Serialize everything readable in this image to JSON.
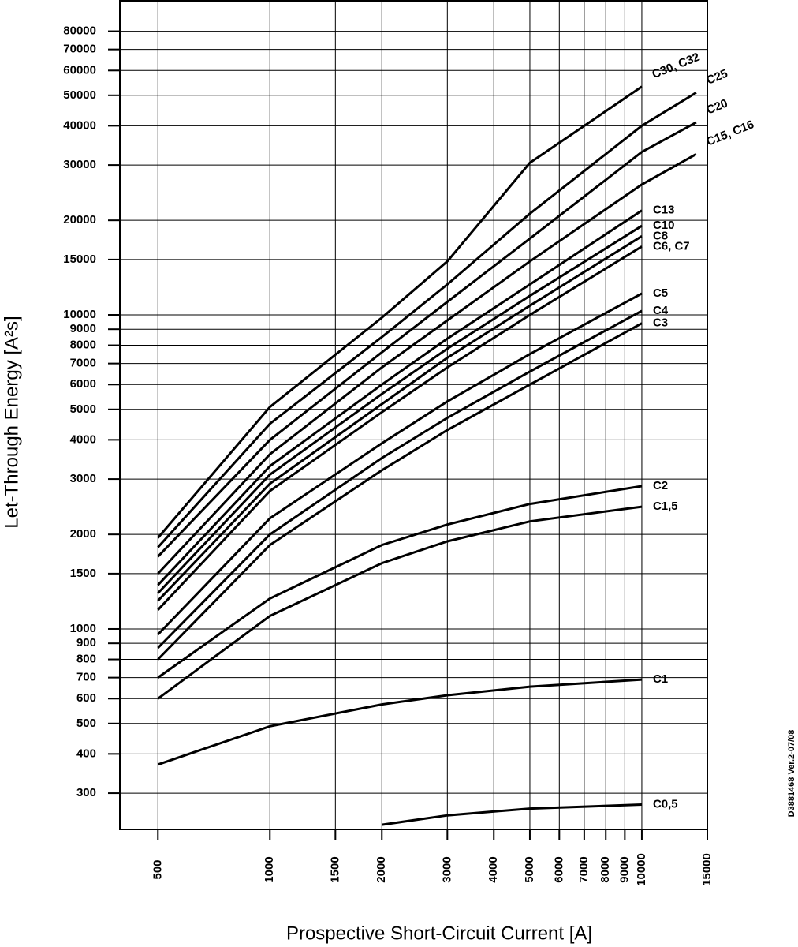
{
  "chart_data": {
    "type": "line",
    "x_label": "Prospective Short-Circuit Current [A]",
    "y_label": "Let-Through Energy [A²s]",
    "note": "D3881468 Ver.2-07/08",
    "xscale": "log",
    "yscale": "log",
    "grid": true,
    "xlim": [
      395,
      15000
    ],
    "ylim": [
      230,
      100000
    ],
    "xticks": [
      500,
      1000,
      1500,
      2000,
      3000,
      4000,
      5000,
      6000,
      7000,
      8000,
      9000,
      10000,
      15000
    ],
    "yticks": [
      300,
      400,
      500,
      600,
      700,
      800,
      900,
      1000,
      1500,
      2000,
      3000,
      4000,
      5000,
      6000,
      7000,
      8000,
      9000,
      10000,
      15000,
      20000,
      30000,
      40000,
      50000,
      60000,
      70000,
      80000
    ],
    "x": [
      500,
      1000,
      2000,
      3000,
      5000,
      10000,
      14000
    ],
    "series": [
      {
        "name": "C30, C32",
        "color": "#000000",
        "values": [
          1950,
          5090,
          9800,
          14800,
          30500,
          53300,
          null
        ]
      },
      {
        "name": "C25",
        "color": "#000000",
        "values": [
          1820,
          4500,
          8500,
          12500,
          21000,
          40000,
          51000
        ]
      },
      {
        "name": "C20",
        "color": "#000000",
        "values": [
          1700,
          4000,
          7600,
          11000,
          17500,
          33000,
          41000
        ]
      },
      {
        "name": "C15, C16",
        "color": "#000000",
        "values": [
          1500,
          3600,
          6800,
          9600,
          14800,
          26000,
          32500
        ]
      },
      {
        "name": "C13",
        "color": "#000000",
        "values": [
          1380,
          3300,
          6000,
          8400,
          12500,
          21500,
          null
        ]
      },
      {
        "name": "C10",
        "color": "#000000",
        "values": [
          1300,
          3100,
          5600,
          7800,
          11500,
          19200,
          null
        ]
      },
      {
        "name": "C8",
        "color": "#000000",
        "values": [
          1230,
          2900,
          5200,
          7300,
          10700,
          17800,
          null
        ]
      },
      {
        "name": "C6, C7",
        "color": "#000000",
        "values": [
          1150,
          2750,
          4900,
          6800,
          10000,
          16500,
          null
        ]
      },
      {
        "name": "C5",
        "color": "#000000",
        "values": [
          960,
          2250,
          3900,
          5300,
          7500,
          11700,
          null
        ]
      },
      {
        "name": "C4",
        "color": "#000000",
        "values": [
          870,
          2000,
          3500,
          4700,
          6600,
          10300,
          null
        ]
      },
      {
        "name": "C3",
        "color": "#000000",
        "values": [
          800,
          1850,
          3200,
          4300,
          6000,
          9400,
          null
        ]
      },
      {
        "name": "C2",
        "color": "#000000",
        "values": [
          700,
          1250,
          1850,
          2150,
          2500,
          2850,
          null
        ]
      },
      {
        "name": "C1,5",
        "color": "#000000",
        "values": [
          600,
          1100,
          1620,
          1900,
          2200,
          2450,
          null
        ]
      },
      {
        "name": "C1",
        "color": "#000000",
        "values": [
          370,
          490,
          575,
          615,
          655,
          690,
          null
        ]
      },
      {
        "name": "C0,5",
        "color": "#000000",
        "values": [
          null,
          null,
          238,
          255,
          268,
          276,
          null
        ]
      }
    ]
  }
}
